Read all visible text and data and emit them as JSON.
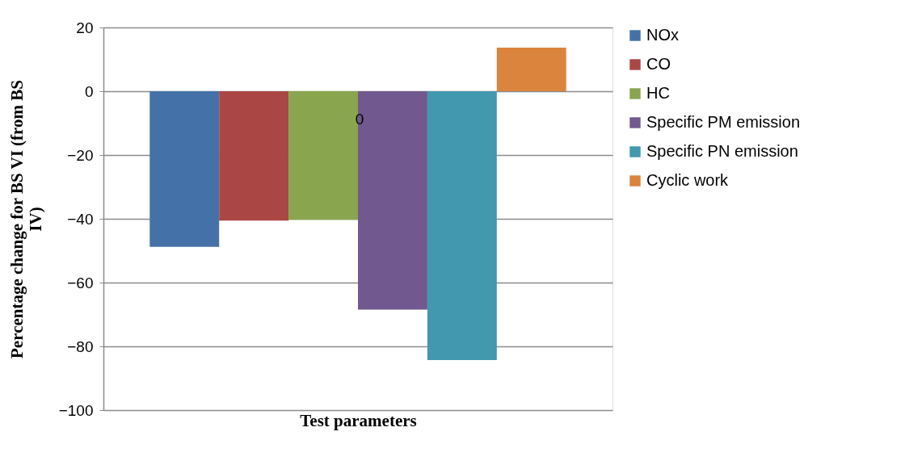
{
  "chart_data": {
    "type": "bar",
    "categories": [
      null
    ],
    "xlabel": "Test parameters",
    "ylabel": "Percentage change for BS VI (from BS IV)",
    "series": [
      {
        "name": "NOx",
        "color": "#4472a8",
        "values": [
          -48.8
        ]
      },
      {
        "name": "CO",
        "color": "#aa4744",
        "values": [
          -40.6
        ]
      },
      {
        "name": "HC",
        "color": "#89a54e",
        "values": [
          -40.3
        ]
      },
      {
        "name": "Specific PM emission",
        "color": "#71588f",
        "values": [
          -68.5
        ]
      },
      {
        "name": "Specific PN emission",
        "color": "#4198af",
        "values": [
          -84.3
        ]
      },
      {
        "name": "Cyclic work",
        "color": "#db843d",
        "values": [
          13.7
        ]
      }
    ],
    "ylim": [
      -100,
      20
    ],
    "yticks": [
      -100,
      -80,
      -60,
      -40,
      -20,
      0,
      20
    ],
    "grid": "y",
    "legend": "right",
    "annotations": [
      "0"
    ]
  }
}
